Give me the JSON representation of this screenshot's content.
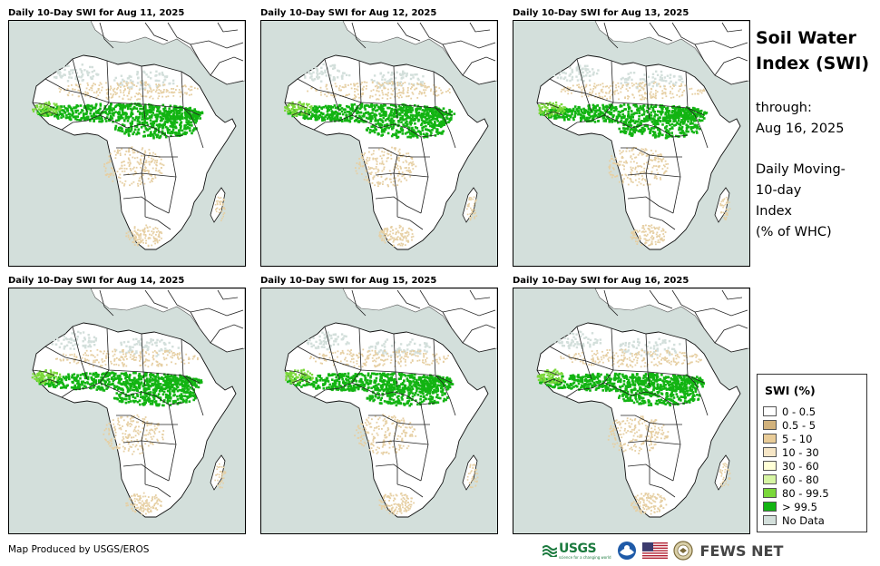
{
  "panels": [
    {
      "title": "Daily 10-Day SWI for Aug 11, 2025"
    },
    {
      "title": "Daily 10-Day SWI for Aug 12, 2025"
    },
    {
      "title": "Daily 10-Day SWI for Aug 13, 2025"
    },
    {
      "title": "Daily 10-Day SWI for Aug 14, 2025"
    },
    {
      "title": "Daily 10-Day SWI for Aug 15, 2025"
    },
    {
      "title": "Daily 10-Day SWI for Aug 16, 2025"
    }
  ],
  "side": {
    "title_line1": "Soil Water",
    "title_line2": "Index (SWI)",
    "through_label": "through:",
    "through_date": "Aug 16, 2025",
    "desc_line1": "Daily Moving-",
    "desc_line2": "10-day",
    "desc_line3": "Index",
    "desc_line4": "(% of WHC)"
  },
  "legend": {
    "title": "SWI (%)",
    "items": [
      {
        "label": "0 - 0.5",
        "color": "#ffffff"
      },
      {
        "label": "0.5 - 5",
        "color": "#d2b27c"
      },
      {
        "label": "5 - 10",
        "color": "#e9cc98"
      },
      {
        "label": "10 - 30",
        "color": "#f6e6c6"
      },
      {
        "label": "30 - 60",
        "color": "#ffffd6"
      },
      {
        "label": "60 - 80",
        "color": "#d6f5a3"
      },
      {
        "label": "80 - 99.5",
        "color": "#7ad83a"
      },
      {
        "label": "> 99.5",
        "color": "#12b412"
      },
      {
        "label": "No Data",
        "color": "#d3dfdb"
      }
    ]
  },
  "colors": {
    "ocean": "#d3dfdb",
    "land": "#ffffff",
    "tan": "#e6cfa3",
    "green": "#12b412",
    "lightgreen": "#7ad83a"
  },
  "footer": {
    "credit": "Map Produced by USGS/EROS",
    "usgs": "USGS",
    "usgs_tagline": "science for a changing world",
    "fews": "FEWS NET"
  }
}
